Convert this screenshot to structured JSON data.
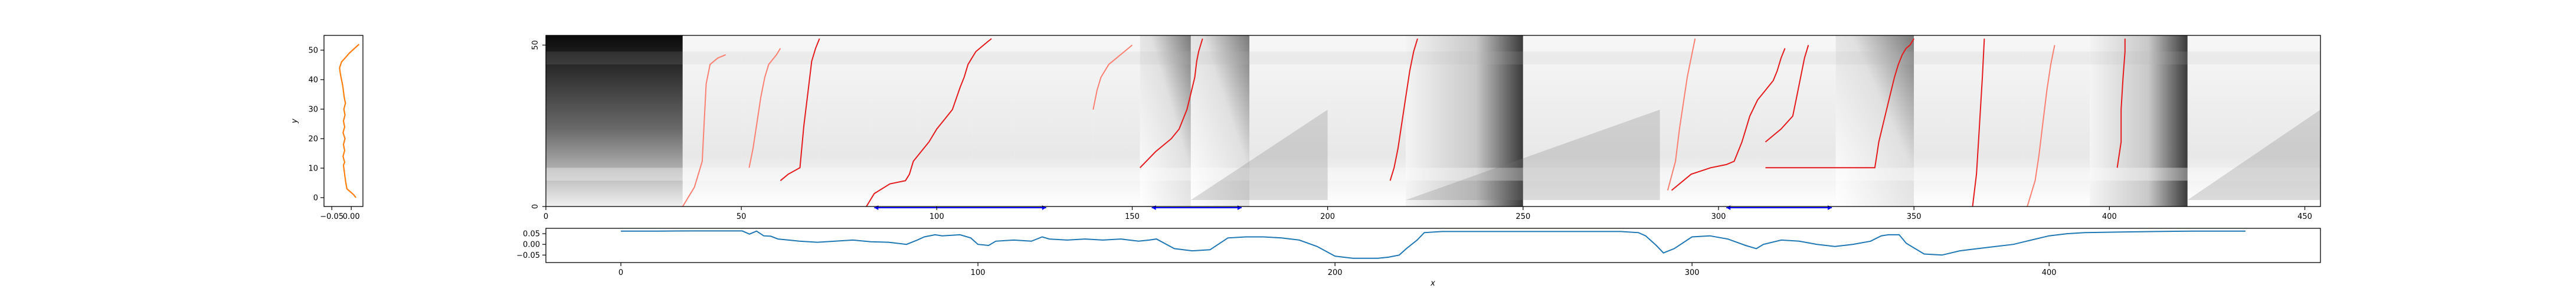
{
  "chart_data": [
    {
      "id": "side-profile",
      "type": "line",
      "ylabel": "y",
      "xlim": [
        -0.07,
        0.03
      ],
      "ylim": [
        -3,
        55
      ],
      "xticks": [
        {
          "v": -0.05,
          "label": "−0.05"
        },
        {
          "v": 0.0,
          "label": "0.00"
        }
      ],
      "yticks": [
        0,
        10,
        20,
        30,
        40,
        50
      ],
      "color": "#ff7f0e",
      "series": [
        {
          "x": [
            0.02,
            -0.005,
            -0.018,
            -0.025,
            -0.03,
            -0.028,
            -0.025,
            -0.022,
            -0.02,
            -0.018,
            -0.015,
            -0.019,
            -0.016,
            -0.02,
            -0.017,
            -0.021,
            -0.016,
            -0.02,
            -0.017,
            -0.021,
            -0.017,
            -0.02,
            -0.018,
            -0.016,
            -0.014,
            -0.011,
            0.006,
            0.012
          ],
          "y": [
            52,
            49,
            47,
            46,
            44,
            42,
            40,
            38,
            36,
            34,
            32,
            30,
            28,
            26,
            24,
            22,
            20,
            18,
            16,
            14,
            12,
            11,
            9,
            7,
            5,
            3,
            1,
            0
          ]
        }
      ]
    },
    {
      "id": "cost-matrix",
      "type": "heatmap",
      "xlim": [
        0,
        454
      ],
      "ylim": [
        0,
        53
      ],
      "xticks": [
        0,
        50,
        100,
        150,
        200,
        250,
        300,
        350,
        400,
        450
      ],
      "yticks": [
        {
          "v": 0,
          "label": "0"
        },
        {
          "v": 50,
          "label": "50"
        }
      ],
      "colormap": "gray",
      "segment_boundaries": [
        35,
        50,
        60,
        70,
        83,
        95,
        108,
        120,
        140,
        152,
        165,
        180,
        200,
        220,
        250,
        285,
        295,
        310,
        330,
        350,
        365,
        378,
        395,
        420,
        454
      ],
      "paths_red": [
        {
          "x": [
            60,
            62,
            65,
            66,
            67,
            68,
            69,
            70
          ],
          "y": [
            8,
            10,
            12,
            25,
            35,
            45,
            49,
            52
          ]
        },
        {
          "x": [
            82,
            84,
            88,
            92,
            93,
            94,
            96,
            98,
            100,
            102,
            104,
            106,
            107,
            108,
            109,
            110,
            112,
            113,
            114
          ],
          "y": [
            0,
            4,
            7,
            8,
            10,
            14,
            17,
            20,
            24,
            27,
            30,
            37,
            40,
            44,
            46,
            48,
            50,
            51,
            52
          ]
        },
        {
          "x": [
            152,
            156,
            160,
            162,
            163,
            164,
            165,
            166,
            166.5,
            167,
            167.5,
            168
          ],
          "y": [
            12,
            17,
            21,
            24,
            27,
            30,
            35,
            40,
            45,
            48,
            50,
            52
          ]
        },
        {
          "x": [
            216,
            217,
            218,
            219,
            220,
            221,
            222,
            223
          ],
          "y": [
            8,
            12,
            18,
            26,
            34,
            42,
            48,
            52
          ]
        },
        {
          "x": [
            288,
            293,
            298,
            302,
            304,
            305,
            306,
            307,
            308,
            310,
            312,
            314,
            315,
            316,
            317
          ],
          "y": [
            5,
            10,
            12,
            13,
            14,
            17,
            20,
            24,
            28,
            33,
            36,
            39,
            42,
            46,
            49
          ]
        },
        {
          "x": [
            312,
            316,
            319,
            320,
            321,
            322,
            323
          ],
          "y": [
            20,
            24,
            28,
            34,
            40,
            46,
            50
          ]
        },
        {
          "x": [
            312,
            322,
            334,
            340,
            340.5,
            341,
            342,
            343,
            344,
            345,
            346,
            347,
            348,
            349,
            350
          ],
          "y": [
            12,
            12,
            12,
            12,
            16,
            20,
            25,
            30,
            35,
            40,
            44,
            47,
            49,
            50,
            52
          ]
        },
        {
          "x": [
            365,
            366,
            366.5,
            367,
            367.5,
            368
          ],
          "y": [
            0,
            10,
            20,
            30,
            40,
            52
          ]
        },
        {
          "x": [
            402,
            403,
            403,
            403.5,
            404,
            404
          ],
          "y": [
            12,
            20,
            30,
            40,
            48,
            52
          ]
        }
      ],
      "paths_salmon": [
        {
          "x": [
            35,
            38,
            40,
            40.5,
            41,
            42,
            44,
            46
          ],
          "y": [
            0,
            6,
            14,
            26,
            38,
            44,
            46,
            47
          ]
        },
        {
          "x": [
            52,
            53,
            54,
            55,
            56,
            57,
            59,
            60
          ],
          "y": [
            12,
            18,
            26,
            34,
            40,
            44,
            47,
            49
          ]
        },
        {
          "x": [
            140,
            141,
            142,
            144,
            146,
            148,
            150
          ],
          "y": [
            30,
            36,
            40,
            44,
            46,
            48,
            50
          ]
        },
        {
          "x": [
            287,
            289,
            290,
            291,
            292,
            293,
            294
          ],
          "y": [
            5,
            14,
            24,
            32,
            40,
            46,
            52
          ]
        },
        {
          "x": [
            379,
            381,
            382,
            383,
            384,
            385,
            386
          ],
          "y": [
            0,
            8,
            16,
            26,
            36,
            44,
            50
          ]
        }
      ],
      "ranges_blue": [
        {
          "x0": 84,
          "x1": 128,
          "y": 0
        },
        {
          "x0": 155,
          "x1": 178,
          "y": 0
        },
        {
          "x0": 302,
          "x1": 329,
          "y": 0
        }
      ],
      "blue_color": "#0000ff"
    },
    {
      "id": "bottom-series",
      "type": "line",
      "xlabel": "x",
      "xlim": [
        -21,
        476
      ],
      "ylim": [
        -0.085,
        0.075
      ],
      "xticks": [
        0,
        100,
        200,
        300,
        400
      ],
      "yticks": [
        {
          "v": 0.05,
          "label": "0.05"
        },
        {
          "v": 0.0,
          "label": "0.00"
        },
        {
          "v": -0.05,
          "label": "−0.05"
        }
      ],
      "color": "#1f77b4",
      "series": [
        {
          "x": [
            0,
            10,
            20,
            30,
            34,
            36,
            38,
            40,
            42,
            44,
            47,
            50,
            55,
            60,
            65,
            70,
            75,
            80,
            83,
            85,
            88,
            90,
            95,
            98,
            100,
            103,
            105,
            110,
            115,
            118,
            120,
            125,
            130,
            135,
            140,
            145,
            148,
            150,
            155,
            160,
            165,
            170,
            175,
            180,
            185,
            190,
            195,
            200,
            205,
            210,
            212,
            215,
            218,
            220,
            223,
            225,
            230,
            235,
            240,
            245,
            250,
            255,
            260,
            265,
            270,
            275,
            280,
            285,
            287,
            290,
            292,
            295,
            300,
            305,
            310,
            315,
            318,
            320,
            325,
            330,
            335,
            340,
            345,
            350,
            353,
            355,
            358,
            360,
            365,
            370,
            375,
            380,
            385,
            390,
            395,
            400,
            405,
            410,
            420,
            430,
            440,
            450,
            455
          ],
          "y": [
            0.062,
            0.062,
            0.063,
            0.063,
            0.063,
            0.048,
            0.062,
            0.04,
            0.038,
            0.025,
            0.02,
            0.015,
            0.01,
            0.015,
            0.02,
            0.012,
            0.01,
            0.0,
            0.02,
            0.035,
            0.045,
            0.04,
            0.045,
            0.03,
            0.0,
            -0.005,
            0.015,
            0.02,
            0.015,
            0.035,
            0.025,
            0.02,
            0.025,
            0.02,
            0.025,
            0.015,
            0.02,
            0.025,
            -0.02,
            -0.03,
            -0.025,
            0.03,
            0.035,
            0.035,
            0.03,
            0.02,
            -0.01,
            -0.055,
            -0.065,
            -0.065,
            -0.065,
            -0.06,
            -0.05,
            -0.02,
            0.02,
            0.055,
            0.06,
            0.06,
            0.06,
            0.06,
            0.06,
            0.06,
            0.06,
            0.06,
            0.06,
            0.06,
            0.06,
            0.055,
            0.04,
            -0.005,
            -0.04,
            -0.02,
            0.035,
            0.04,
            0.025,
            -0.005,
            -0.02,
            0.0,
            0.02,
            0.015,
            0.0,
            -0.01,
            0.0,
            0.015,
            0.04,
            0.045,
            0.045,
            0.005,
            -0.045,
            -0.05,
            -0.03,
            -0.02,
            -0.01,
            0.0,
            0.02,
            0.04,
            0.05,
            0.055,
            0.058,
            0.06,
            0.062,
            0.062,
            0.062
          ]
        }
      ]
    }
  ]
}
